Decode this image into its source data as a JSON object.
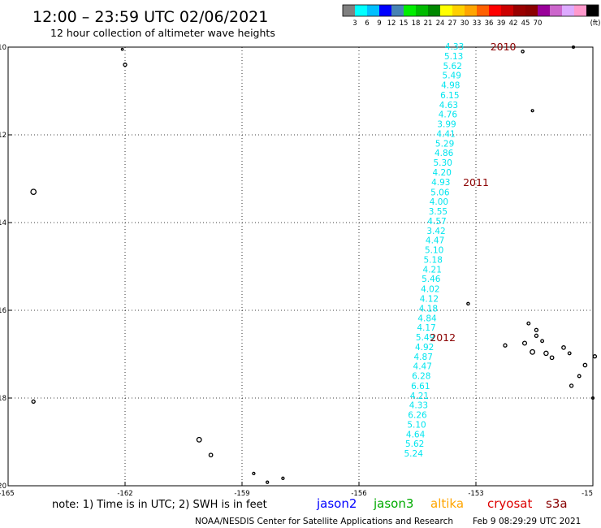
{
  "header": {
    "title": "12:00 – 23:59 UTC 02/06/2021",
    "subtitle": "12 hour collection of altimeter wave heights"
  },
  "legend": {
    "unit": "(ft)",
    "ticks": [
      "3",
      "6",
      "9",
      "12",
      "15",
      "18",
      "21",
      "24",
      "27",
      "30",
      "33",
      "36",
      "39",
      "42",
      "45",
      "70"
    ],
    "colors": [
      "#808080",
      "#00ffff",
      "#00bfff",
      "#0000ff",
      "#4682b4",
      "#00ee00",
      "#00bb00",
      "#008800",
      "#ffff00",
      "#ffd000",
      "#ffa500",
      "#ff6000",
      "#ff0000",
      "#cc0000",
      "#990000",
      "#8b0000",
      "#990099",
      "#cc66cc",
      "#ddaaff",
      "#ff99cc",
      "#000000"
    ]
  },
  "chart_data": {
    "type": "scatter",
    "xlim": [
      -165,
      -150
    ],
    "ylim": [
      -20,
      -10
    ],
    "x_ticks": [
      "-165",
      "-162",
      "-159",
      "-156",
      "-153",
      "-15"
    ],
    "y_ticks": [
      "-10",
      "-12",
      "-14",
      "-16",
      "-18",
      "-20"
    ],
    "grid": true,
    "track_color": "#00e5ee",
    "track": [
      {
        "lon": -153.55,
        "lat": -10.0,
        "swh": "4.33"
      },
      {
        "lon": -153.57,
        "lat": -10.22,
        "swh": "5.13"
      },
      {
        "lon": -153.6,
        "lat": -10.44,
        "swh": "5.62"
      },
      {
        "lon": -153.62,
        "lat": -10.66,
        "swh": "5.49"
      },
      {
        "lon": -153.65,
        "lat": -10.88,
        "swh": "4.98"
      },
      {
        "lon": -153.67,
        "lat": -11.11,
        "swh": "6.15"
      },
      {
        "lon": -153.7,
        "lat": -11.33,
        "swh": "4.63"
      },
      {
        "lon": -153.72,
        "lat": -11.55,
        "swh": "4.76"
      },
      {
        "lon": -153.75,
        "lat": -11.77,
        "swh": "3.99"
      },
      {
        "lon": -153.77,
        "lat": -11.99,
        "swh": "4.41"
      },
      {
        "lon": -153.8,
        "lat": -12.21,
        "swh": "5.29"
      },
      {
        "lon": -153.82,
        "lat": -12.43,
        "swh": "4.86"
      },
      {
        "lon": -153.85,
        "lat": -12.65,
        "swh": "5.30"
      },
      {
        "lon": -153.87,
        "lat": -12.87,
        "swh": "4.20"
      },
      {
        "lon": -153.9,
        "lat": -13.09,
        "swh": "4.93"
      },
      {
        "lon": -153.92,
        "lat": -13.32,
        "swh": "5.06"
      },
      {
        "lon": -153.95,
        "lat": -13.54,
        "swh": "4.00"
      },
      {
        "lon": -153.97,
        "lat": -13.76,
        "swh": "3.55"
      },
      {
        "lon": -154.0,
        "lat": -13.98,
        "swh": "4.57"
      },
      {
        "lon": -154.02,
        "lat": -14.2,
        "swh": "3.42"
      },
      {
        "lon": -154.05,
        "lat": -14.42,
        "swh": "4.47"
      },
      {
        "lon": -154.07,
        "lat": -14.64,
        "swh": "5.10"
      },
      {
        "lon": -154.1,
        "lat": -14.86,
        "swh": "5.18"
      },
      {
        "lon": -154.12,
        "lat": -15.08,
        "swh": "4.21"
      },
      {
        "lon": -154.15,
        "lat": -15.3,
        "swh": "5.46"
      },
      {
        "lon": -154.17,
        "lat": -15.53,
        "swh": "4.02"
      },
      {
        "lon": -154.2,
        "lat": -15.75,
        "swh": "4.12"
      },
      {
        "lon": -154.22,
        "lat": -15.97,
        "swh": "4.18"
      },
      {
        "lon": -154.25,
        "lat": -16.19,
        "swh": "4.84"
      },
      {
        "lon": -154.27,
        "lat": -16.41,
        "swh": "4.17"
      },
      {
        "lon": -154.3,
        "lat": -16.63,
        "swh": "5.49"
      },
      {
        "lon": -154.32,
        "lat": -16.85,
        "swh": "4.92"
      },
      {
        "lon": -154.35,
        "lat": -17.07,
        "swh": "4.87"
      },
      {
        "lon": -154.37,
        "lat": -17.29,
        "swh": "4.47"
      },
      {
        "lon": -154.4,
        "lat": -17.51,
        "swh": "6.28"
      },
      {
        "lon": -154.42,
        "lat": -17.74,
        "swh": "6.61"
      },
      {
        "lon": -154.45,
        "lat": -17.96,
        "swh": "4.21"
      },
      {
        "lon": -154.47,
        "lat": -18.18,
        "swh": "4.33"
      },
      {
        "lon": -154.5,
        "lat": -18.4,
        "swh": "6.26"
      },
      {
        "lon": -154.52,
        "lat": -18.62,
        "swh": "5.10"
      },
      {
        "lon": -154.55,
        "lat": -18.84,
        "swh": "4.64"
      },
      {
        "lon": -154.57,
        "lat": -19.06,
        "swh": "5.62"
      },
      {
        "lon": -154.6,
        "lat": -19.28,
        "swh": "5.24"
      }
    ],
    "annotations": [
      {
        "text": "2010",
        "lon": -152.3,
        "lat": -10.0
      },
      {
        "text": "2011",
        "lon": -153.0,
        "lat": -13.09
      },
      {
        "text": "2012",
        "lon": -153.85,
        "lat": -16.63
      }
    ],
    "islands": [
      {
        "lon": -162.07,
        "lat": -10.05,
        "r": 1.2
      },
      {
        "lon": -162.0,
        "lat": -10.4,
        "r": 2.0
      },
      {
        "lon": -164.35,
        "lat": -13.3,
        "r": 3.2
      },
      {
        "lon": -153.2,
        "lat": -15.85,
        "r": 1.6
      },
      {
        "lon": -152.25,
        "lat": -16.8,
        "r": 2.0
      },
      {
        "lon": -151.55,
        "lat": -11.45,
        "r": 1.4
      },
      {
        "lon": -150.5,
        "lat": -10.0,
        "r": 1.4
      },
      {
        "lon": -151.8,
        "lat": -10.1,
        "r": 1.6
      },
      {
        "lon": -150.0,
        "lat": -18.0,
        "r": 1.4
      },
      {
        "lon": -149.7,
        "lat": -17.7,
        "r": 2.2
      },
      {
        "lon": -149.4,
        "lat": -17.5,
        "r": 1.6
      },
      {
        "lon": -150.2,
        "lat": -17.25,
        "r": 2.2
      },
      {
        "lon": -150.35,
        "lat": -17.5,
        "r": 1.8
      },
      {
        "lon": -149.95,
        "lat": -17.05,
        "r": 2.0
      },
      {
        "lon": -151.45,
        "lat": -16.45,
        "r": 2.0
      },
      {
        "lon": -151.65,
        "lat": -16.3,
        "r": 1.8
      },
      {
        "lon": -151.75,
        "lat": -16.75,
        "r": 2.4
      },
      {
        "lon": -151.55,
        "lat": -16.95,
        "r": 2.8
      },
      {
        "lon": -151.45,
        "lat": -16.58,
        "r": 2.0
      },
      {
        "lon": -151.3,
        "lat": -16.7,
        "r": 1.8
      },
      {
        "lon": -151.2,
        "lat": -16.98,
        "r": 2.6
      },
      {
        "lon": -151.05,
        "lat": -17.08,
        "r": 2.2
      },
      {
        "lon": -150.75,
        "lat": -16.85,
        "r": 2.2
      },
      {
        "lon": -150.6,
        "lat": -16.98,
        "r": 1.8
      },
      {
        "lon": -150.55,
        "lat": -17.72,
        "r": 2.0
      },
      {
        "lon": -164.35,
        "lat": -18.08,
        "r": 2.0
      },
      {
        "lon": -160.1,
        "lat": -18.95,
        "r": 2.8
      },
      {
        "lon": -159.8,
        "lat": -19.3,
        "r": 2.2
      },
      {
        "lon": -158.7,
        "lat": -19.72,
        "r": 1.5
      },
      {
        "lon": -158.35,
        "lat": -19.92,
        "r": 1.5
      },
      {
        "lon": -157.95,
        "lat": -19.83,
        "r": 1.5
      }
    ]
  },
  "footer": {
    "note": "note:  1) Time is in UTC;  2) SWH is in feet",
    "satellites": [
      {
        "name": "jason2",
        "color": "#0000ff"
      },
      {
        "name": "jason3",
        "color": "#00aa00"
      },
      {
        "name": "altika",
        "color": "#ffa500"
      },
      {
        "name": "cryosat",
        "color": "#dd0000"
      },
      {
        "name": "s3a",
        "color": "#880000"
      }
    ],
    "credit": "NOAA/NESDIS Center for Satellite Applications and Research",
    "timestamp": "Feb  9 08:29:29 UTC 2021"
  }
}
